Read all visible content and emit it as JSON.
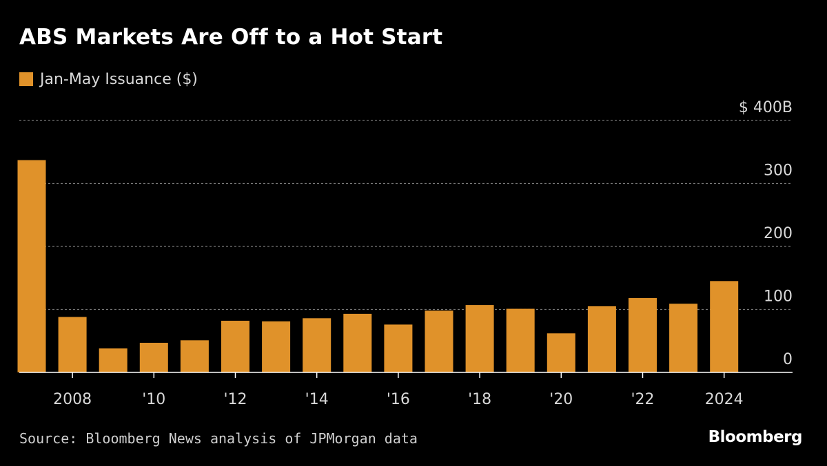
{
  "colors": {
    "background": "#000000",
    "bar": "#e0922a",
    "gridline": "#7a7a7a",
    "text": "#ffffff",
    "muted_text": "#d8d8d8"
  },
  "chart_data": {
    "type": "bar",
    "title": "ABS Markets Are Off to a Hot Start",
    "series": [
      {
        "name": "Jan-May Issuance ($)",
        "values": [
          337,
          88,
          38,
          47,
          51,
          82,
          81,
          86,
          93,
          76,
          98,
          107,
          101,
          62,
          105,
          118,
          109,
          145
        ]
      }
    ],
    "categories": [
      "2007",
      "2008",
      "2009",
      "2010",
      "2011",
      "2012",
      "2013",
      "2014",
      "2015",
      "2016",
      "2017",
      "2018",
      "2019",
      "2020",
      "2021",
      "2022",
      "2023",
      "2024"
    ],
    "x_tick_labels": [
      {
        "category": "2008",
        "label": "2008"
      },
      {
        "category": "2010",
        "label": "'10"
      },
      {
        "category": "2012",
        "label": "'12"
      },
      {
        "category": "2014",
        "label": "'14"
      },
      {
        "category": "2016",
        "label": "'16"
      },
      {
        "category": "2018",
        "label": "'18"
      },
      {
        "category": "2020",
        "label": "'20"
      },
      {
        "category": "2022",
        "label": "'22"
      },
      {
        "category": "2024",
        "label": "2024"
      }
    ],
    "y_ticks": [
      {
        "value": 0,
        "label": "0"
      },
      {
        "value": 100,
        "label": "100"
      },
      {
        "value": 200,
        "label": "200"
      },
      {
        "value": 300,
        "label": "300"
      },
      {
        "value": 400,
        "label": "$ 400B"
      }
    ],
    "ylim": [
      0,
      400
    ],
    "y_axis_side": "right",
    "grid": true,
    "legend_position": "top-left"
  },
  "footer": {
    "source": "Source: Bloomberg News analysis of JPMorgan data",
    "brand": "Bloomberg"
  }
}
